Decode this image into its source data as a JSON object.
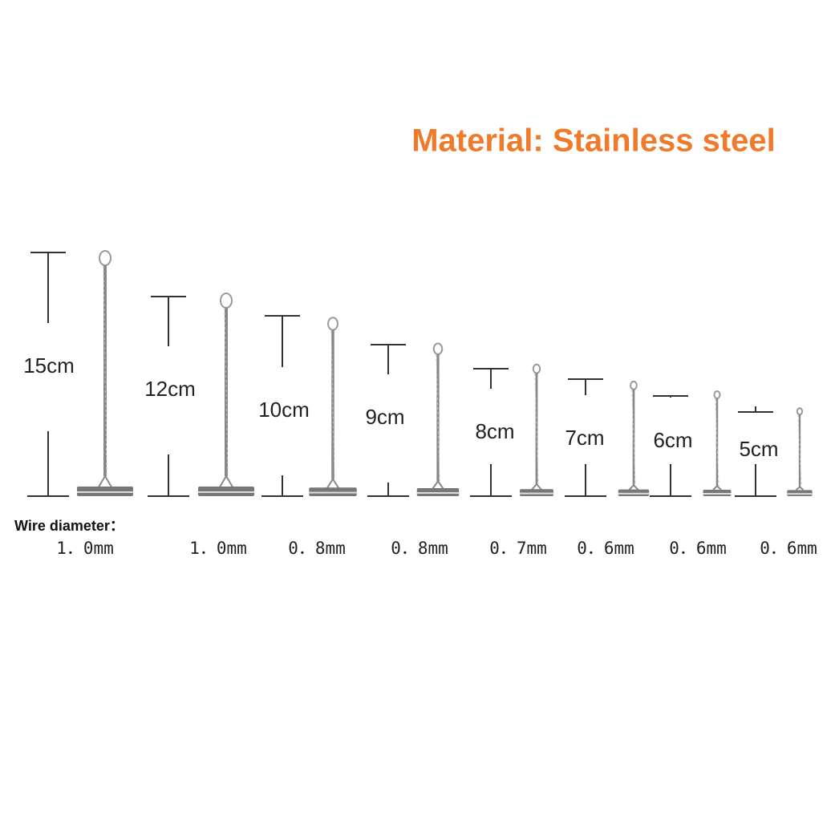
{
  "title": "Material: Stainless steel",
  "wire_label": "Wire diameter：",
  "items": [
    {
      "length": "15cm",
      "diameter": "1．0mm"
    },
    {
      "length": "12cm",
      "diameter": "1．0mm"
    },
    {
      "length": "10cm",
      "diameter": "0．8mm"
    },
    {
      "length": "9cm",
      "diameter": "0．8mm"
    },
    {
      "length": "8cm",
      "diameter": "0．7mm"
    },
    {
      "length": "7cm",
      "diameter": "0．6mm"
    },
    {
      "length": "6cm",
      "diameter": "0．6mm"
    },
    {
      "length": "5cm",
      "diameter": "0．6mm"
    }
  ]
}
